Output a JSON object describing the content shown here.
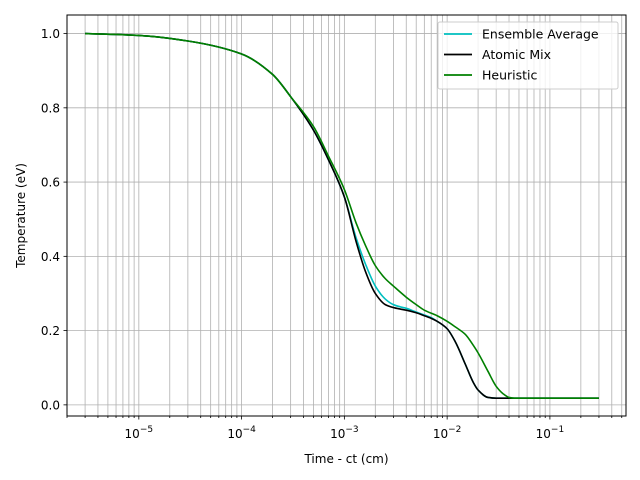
{
  "chart_data": {
    "type": "line",
    "title": "",
    "xlabel": "Time - ct (cm)",
    "ylabel": "Temperature (eV)",
    "xscale": "log",
    "xlim": [
      2e-06,
      0.55
    ],
    "ylim": [
      -0.03,
      1.05
    ],
    "grid": "major and minor",
    "legend_position": "top-right",
    "x_ticks": [
      {
        "value": 1e-05,
        "base": "10",
        "exp": "−5"
      },
      {
        "value": 0.0001,
        "base": "10",
        "exp": "−4"
      },
      {
        "value": 0.001,
        "base": "10",
        "exp": "−3"
      },
      {
        "value": 0.01,
        "base": "10",
        "exp": "−2"
      },
      {
        "value": 0.1,
        "base": "10",
        "exp": "−1"
      }
    ],
    "y_ticks": [
      "0.0",
      "0.2",
      "0.4",
      "0.6",
      "0.8",
      "1.0"
    ],
    "series": [
      {
        "name": "Ensemble Average",
        "color": "#00bfbf",
        "x": [
          3e-06,
          1e-05,
          3e-05,
          0.0001,
          0.0002,
          0.0003,
          0.0005,
          0.0007,
          0.001,
          0.0013,
          0.0016,
          0.002,
          0.0025,
          0.003,
          0.0035,
          0.004,
          0.005,
          0.006,
          0.007,
          0.008,
          0.01,
          0.012,
          0.015,
          0.018,
          0.02,
          0.025,
          0.03,
          0.04,
          0.05,
          0.1,
          0.3
        ],
        "y": [
          1.0,
          0.995,
          0.98,
          0.945,
          0.89,
          0.83,
          0.74,
          0.66,
          0.56,
          0.45,
          0.38,
          0.32,
          0.285,
          0.27,
          0.264,
          0.26,
          0.25,
          0.242,
          0.235,
          0.225,
          0.205,
          0.17,
          0.11,
          0.06,
          0.04,
          0.02,
          0.018,
          0.018,
          0.018,
          0.018,
          0.018
        ]
      },
      {
        "name": "Atomic Mix",
        "color": "#000000",
        "x": [
          3e-06,
          1e-05,
          3e-05,
          0.0001,
          0.0002,
          0.0003,
          0.0005,
          0.0007,
          0.001,
          0.0013,
          0.0016,
          0.002,
          0.0025,
          0.003,
          0.0035,
          0.004,
          0.005,
          0.006,
          0.007,
          0.008,
          0.01,
          0.012,
          0.015,
          0.018,
          0.02,
          0.025,
          0.03,
          0.04,
          0.05,
          0.1,
          0.3
        ],
        "y": [
          1.0,
          0.995,
          0.98,
          0.945,
          0.89,
          0.83,
          0.74,
          0.66,
          0.56,
          0.44,
          0.36,
          0.3,
          0.27,
          0.262,
          0.258,
          0.255,
          0.248,
          0.24,
          0.233,
          0.225,
          0.205,
          0.17,
          0.11,
          0.06,
          0.04,
          0.02,
          0.018,
          0.018,
          0.018,
          0.018,
          0.018
        ]
      },
      {
        "name": "Heuristic",
        "color": "#008000",
        "x": [
          3e-06,
          1e-05,
          3e-05,
          0.0001,
          0.0002,
          0.0003,
          0.0005,
          0.0007,
          0.001,
          0.0013,
          0.0016,
          0.002,
          0.0025,
          0.003,
          0.004,
          0.005,
          0.006,
          0.008,
          0.01,
          0.012,
          0.015,
          0.018,
          0.02,
          0.025,
          0.03,
          0.035,
          0.04,
          0.045,
          0.05,
          0.1,
          0.3
        ],
        "y": [
          1.0,
          0.995,
          0.98,
          0.945,
          0.89,
          0.83,
          0.75,
          0.67,
          0.58,
          0.49,
          0.43,
          0.375,
          0.34,
          0.32,
          0.29,
          0.27,
          0.255,
          0.24,
          0.225,
          0.21,
          0.19,
          0.16,
          0.14,
          0.09,
          0.05,
          0.03,
          0.02,
          0.018,
          0.018,
          0.018,
          0.018
        ]
      }
    ]
  }
}
